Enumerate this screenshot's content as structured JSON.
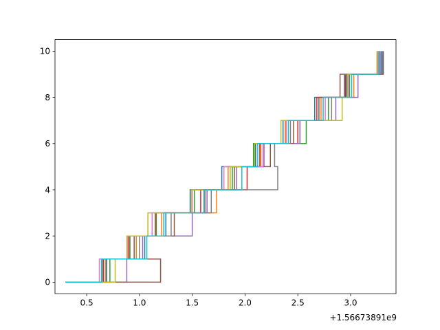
{
  "chart_data": {
    "type": "line",
    "step": "post",
    "title": "",
    "xlabel": "",
    "ylabel": "",
    "x_offset_label": "+1.56673891e9",
    "xlim": [
      0.2,
      3.43
    ],
    "ylim": [
      -0.5,
      10.5
    ],
    "xticks": [
      0.5,
      1.0,
      1.5,
      2.0,
      2.5,
      3.0
    ],
    "xtick_labels": [
      "0.5",
      "1.0",
      "1.5",
      "2.0",
      "2.5",
      "3.0"
    ],
    "yticks": [
      0,
      2,
      4,
      6,
      8,
      10
    ],
    "ytick_labels": [
      "0",
      "2",
      "4",
      "6",
      "8",
      "10"
    ],
    "grid": false,
    "legend": "none",
    "series": [
      {
        "color": "#1f77b4",
        "x": [
          0.3,
          0.69,
          1.05,
          1.25,
          1.48,
          1.78,
          2.1,
          2.36,
          2.66,
          2.96,
          3.3
        ],
        "y": [
          0,
          1,
          2,
          3,
          4,
          5,
          6,
          7,
          8,
          9,
          10
        ]
      },
      {
        "color": "#ff7f0e",
        "x": [
          0.3,
          0.68,
          0.97,
          1.21,
          1.73,
          1.84,
          2.15,
          2.38,
          2.72,
          3.03,
          3.25
        ],
        "y": [
          0,
          1,
          2,
          3,
          4,
          5,
          6,
          7,
          8,
          9,
          10
        ]
      },
      {
        "color": "#2ca02c",
        "x": [
          0.3,
          0.72,
          0.91,
          1.16,
          1.52,
          1.88,
          2.08,
          2.58,
          2.79,
          2.99,
          3.27
        ],
        "y": [
          0,
          1,
          2,
          3,
          4,
          5,
          6,
          7,
          8,
          9,
          10
        ]
      },
      {
        "color": "#d62728",
        "x": [
          0.3,
          0.66,
          0.9,
          1.15,
          1.58,
          2.02,
          2.14,
          2.5,
          2.68,
          2.95,
          3.26
        ],
        "y": [
          0,
          1,
          2,
          3,
          4,
          5,
          6,
          7,
          8,
          9,
          10
        ]
      },
      {
        "color": "#9467bd",
        "x": [
          0.3,
          0.88,
          1.03,
          1.5,
          1.64,
          1.92,
          2.18,
          2.52,
          2.86,
          3.07,
          3.28
        ],
        "y": [
          0,
          1,
          2,
          3,
          4,
          5,
          6,
          7,
          8,
          9,
          10
        ]
      },
      {
        "color": "#8c564b",
        "x": [
          0.3,
          1.2,
          0.95,
          1.33,
          1.62,
          1.9,
          2.24,
          2.46,
          2.7,
          2.9,
          3.31
        ],
        "y": [
          0,
          1,
          2,
          3,
          4,
          5,
          6,
          7,
          8,
          9,
          10
        ]
      },
      {
        "color": "#e377c2",
        "x": [
          0.3,
          0.62,
          0.89,
          1.12,
          1.5,
          1.8,
          2.17,
          2.39,
          2.76,
          2.98,
          3.26
        ],
        "y": [
          0,
          1,
          2,
          3,
          4,
          5,
          6,
          7,
          8,
          9,
          10
        ]
      },
      {
        "color": "#7f7f7f",
        "x": [
          0.3,
          0.65,
          1.0,
          1.3,
          1.68,
          2.31,
          2.28,
          2.43,
          2.82,
          2.94,
          3.29
        ],
        "y": [
          0,
          1,
          2,
          3,
          4,
          5,
          6,
          7,
          8,
          9,
          10
        ]
      },
      {
        "color": "#bcbd22",
        "x": [
          0.3,
          0.77,
          0.88,
          1.08,
          1.49,
          1.86,
          2.09,
          2.34,
          2.92,
          2.97,
          3.25
        ],
        "y": [
          0,
          1,
          2,
          3,
          4,
          5,
          6,
          7,
          8,
          9,
          10
        ]
      },
      {
        "color": "#17becf",
        "x": [
          0.3,
          0.64,
          1.07,
          1.23,
          1.61,
          1.97,
          2.12,
          2.41,
          2.74,
          3.01,
          3.27
        ],
        "y": [
          0,
          1,
          2,
          3,
          4,
          5,
          6,
          7,
          8,
          9,
          10
        ]
      }
    ]
  }
}
